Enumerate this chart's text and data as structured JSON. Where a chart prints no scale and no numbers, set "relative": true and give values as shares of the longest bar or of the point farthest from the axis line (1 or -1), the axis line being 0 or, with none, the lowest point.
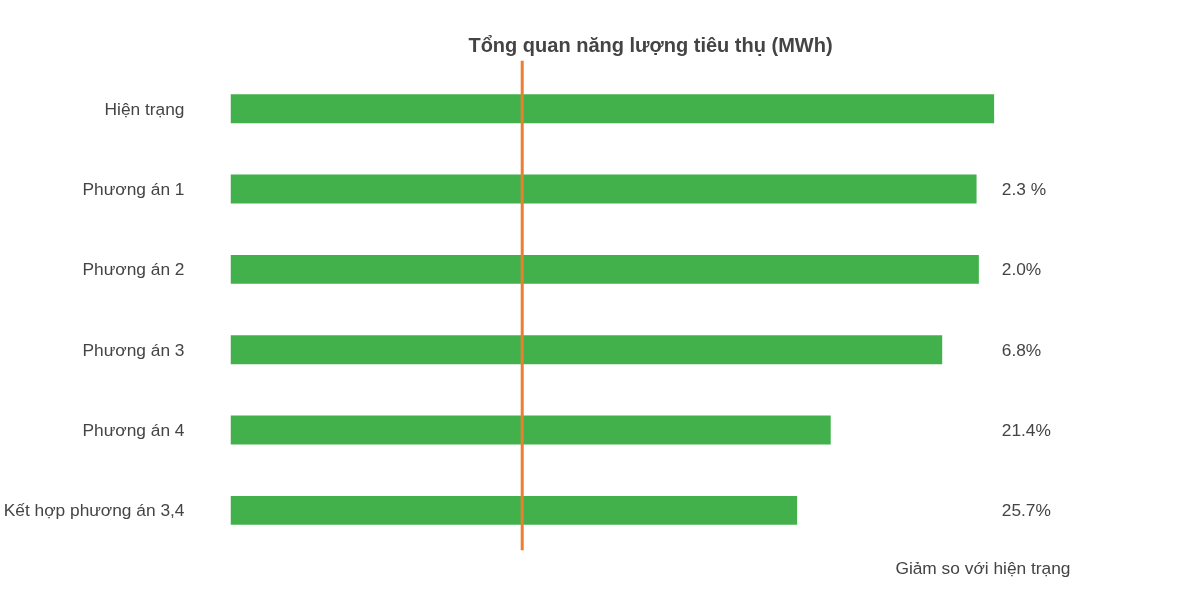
{
  "chart_data": {
    "type": "bar",
    "orientation": "horizontal",
    "relative": true,
    "title": "Tổng quan năng lượng tiêu thụ (MWh)",
    "categories": [
      "Hiện trạng",
      "Phương án 1",
      "Phương án 2",
      "Phương án 3",
      "Phương án 4",
      "Kết hợp phương án 3,4"
    ],
    "values": [
      1,
      0.977,
      0.98,
      0.932,
      0.786,
      0.742
    ],
    "color": "#43b14b",
    "ref_lines": [
      {
        "axis": "x",
        "value": 0.382,
        "color": "#ed7d31"
      }
    ],
    "annotations": [
      "2.3 %",
      "2.0%",
      "6.8%",
      "21.4%",
      "25.7%",
      "Giảm so với hiện trạng"
    ]
  }
}
